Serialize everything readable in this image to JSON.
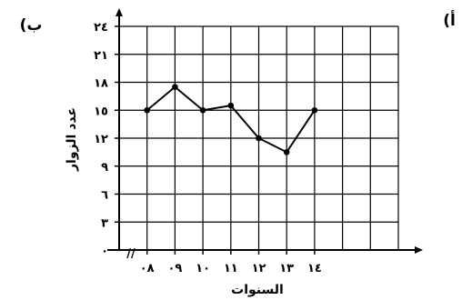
{
  "panel_labels": {
    "left": "(ب",
    "right": "(أ"
  },
  "chart_data": {
    "type": "line",
    "xlabel": "السنوات",
    "ylabel": "عدد الزوار",
    "x_break_mark": "//",
    "x_ticks": [
      "٠٨",
      "٠٩",
      "١٠",
      "١١",
      "١٢",
      "١٣",
      "١٤"
    ],
    "y_ticks": [
      "٠",
      "٣",
      "٦",
      "٩",
      "١٢",
      "١٥",
      "١٨",
      "٢١",
      "٢٤"
    ],
    "ylim": [
      0,
      24
    ],
    "grid": true,
    "series": [
      {
        "x": [
          "٠٨",
          "٠٩",
          "١٠",
          "١١",
          "١٢",
          "١٣",
          "١٤"
        ],
        "values": [
          15,
          17.5,
          15,
          15.5,
          12,
          10.5,
          15
        ]
      }
    ],
    "colors": {
      "line": "#000000",
      "grid": "#000000"
    }
  }
}
